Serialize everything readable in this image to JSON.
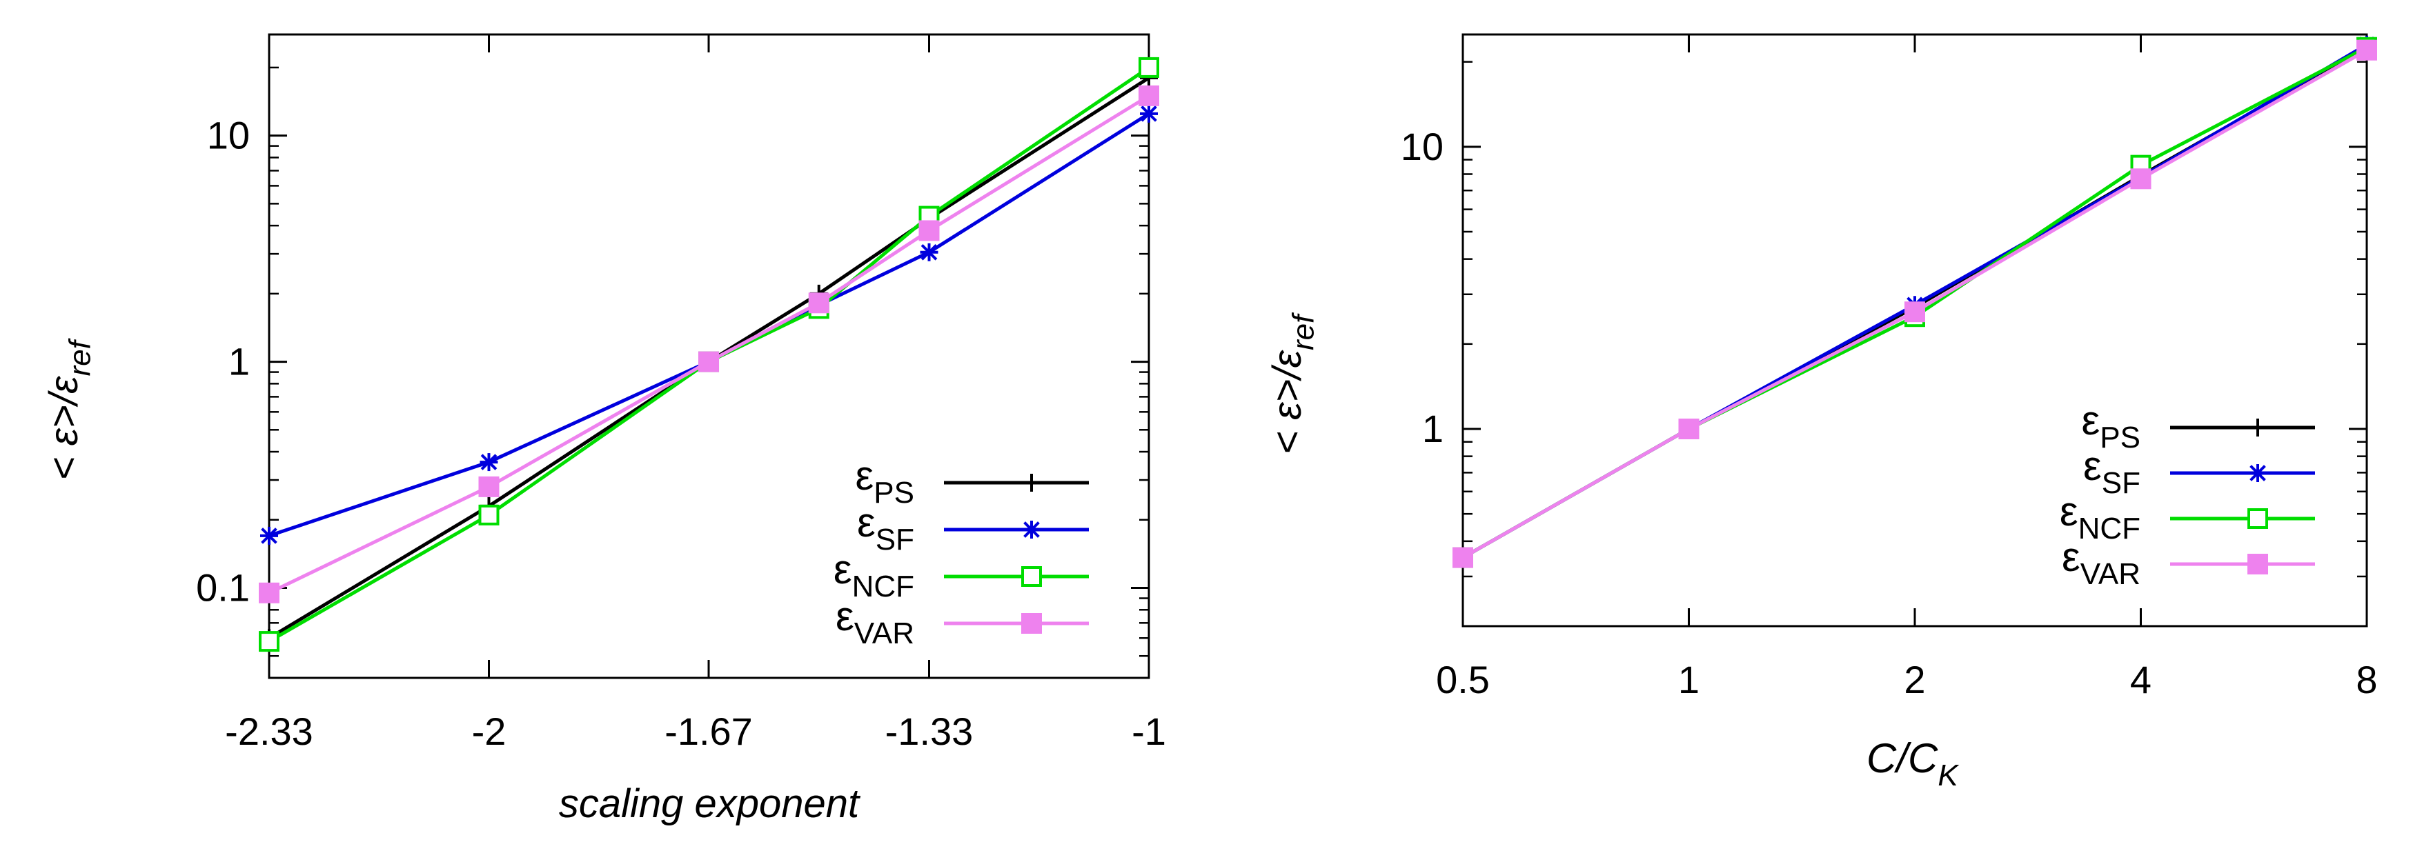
{
  "chart_data": [
    {
      "type": "line",
      "y_scale": "log",
      "title": "",
      "xlabel": "scaling exponent",
      "ylabel": {
        "base": "< ε>/ε",
        "sub": "ref"
      },
      "x": [
        -2.333,
        -2.0,
        -1.667,
        -1.5,
        -1.333,
        -1.0
      ],
      "x_ticks": [
        -2.333,
        -2.0,
        -1.667,
        -1.333,
        -1.0
      ],
      "x_tick_labels": [
        "-2.33",
        "-2",
        "-1.67",
        "-1.33",
        "-1"
      ],
      "y_ticks": [
        0.1,
        1,
        10
      ],
      "y_tick_labels": [
        "0.1",
        "1",
        "10"
      ],
      "xlim": [
        -2.333,
        -1.0
      ],
      "ylim": [
        0.04,
        28
      ],
      "legend_position": "bottom-right",
      "series": [
        {
          "name": "ε",
          "sub": "PS",
          "color": "#000000",
          "marker": "plus",
          "values": [
            0.06,
            0.23,
            1.0,
            2.0,
            4.3,
            18.0
          ]
        },
        {
          "name": "ε",
          "sub": "SF",
          "color": "#0000dd",
          "marker": "star",
          "values": [
            0.17,
            0.36,
            1.0,
            1.78,
            3.05,
            12.5
          ]
        },
        {
          "name": "ε",
          "sub": "NCF",
          "color": "#00dd00",
          "marker": "open-square",
          "values": [
            0.058,
            0.21,
            1.0,
            1.72,
            4.4,
            20.0
          ]
        },
        {
          "name": "ε",
          "sub": "VAR",
          "color": "#ee82ee",
          "marker": "filled-square",
          "values": [
            0.095,
            0.28,
            1.0,
            1.82,
            3.8,
            15.0
          ]
        }
      ]
    },
    {
      "type": "line",
      "y_scale": "log",
      "x_scale": "log2",
      "title": "",
      "xlabel": {
        "base": "C/C",
        "sub": "K"
      },
      "ylabel": {
        "base": "< ε>/ε",
        "sub": "ref"
      },
      "x": [
        0.5,
        1,
        2,
        4,
        8
      ],
      "x_ticks": [
        0.5,
        1,
        2,
        4,
        8
      ],
      "x_tick_labels": [
        "0.5",
        "1",
        "2",
        "4",
        "8"
      ],
      "y_ticks": [
        1,
        10
      ],
      "y_tick_labels": [
        "1",
        "10"
      ],
      "xlim": [
        0.5,
        8
      ],
      "ylim": [
        0.2,
        25
      ],
      "legend_position": "bottom-right",
      "series": [
        {
          "name": "ε",
          "sub": "PS",
          "color": "#000000",
          "marker": "plus",
          "values": [
            0.35,
            1.0,
            2.7,
            7.9,
            22.5
          ]
        },
        {
          "name": "ε",
          "sub": "SF",
          "color": "#0000dd",
          "marker": "star",
          "values": [
            0.35,
            1.0,
            2.75,
            7.8,
            23.0
          ]
        },
        {
          "name": "ε",
          "sub": "NCF",
          "color": "#00dd00",
          "marker": "open-square",
          "values": [
            0.35,
            1.0,
            2.5,
            8.6,
            22.5
          ]
        },
        {
          "name": "ε",
          "sub": "VAR",
          "color": "#ee82ee",
          "marker": "filled-square",
          "values": [
            0.35,
            1.0,
            2.6,
            7.7,
            22.0
          ]
        }
      ]
    }
  ]
}
